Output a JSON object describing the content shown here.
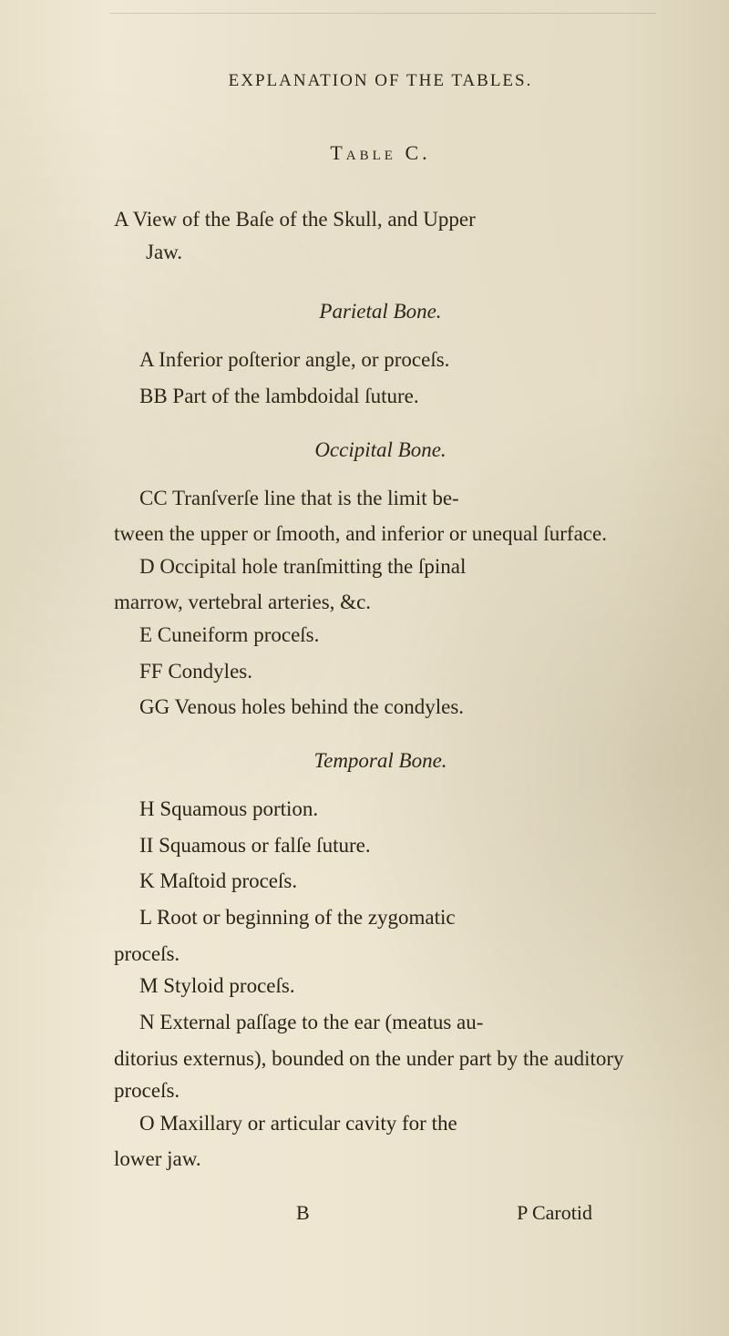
{
  "header": "EXPLANATION OF THE TABLES.",
  "tableLabel": "Table C.",
  "mainTitle": {
    "line1": "A View of the Baſe of the Skull, and Upper",
    "line2": "Jaw."
  },
  "sections": {
    "parietal": {
      "title": "Parietal Bone.",
      "entries": [
        "A  Inferior poſterior angle, or proceſs.",
        "BB  Part of the lambdoidal ſuture."
      ]
    },
    "occipital": {
      "title": "Occipital Bone.",
      "entries": [
        "CC  Tranſverſe line that is the limit be-",
        "tween the upper or ſmooth, and inferior or unequal ſurface.",
        "D  Occipital hole tranſmitting the ſpinal",
        "marrow, vertebral arteries, &c.",
        "E  Cuneiform proceſs.",
        "FF  Condyles.",
        "GG  Venous holes behind the condyles."
      ]
    },
    "temporal": {
      "title": "Temporal Bone.",
      "entries": [
        "H  Squamous portion.",
        "II  Squamous or falſe ſuture.",
        "K  Maſtoid proceſs.",
        "L  Root or beginning of the zygomatic",
        "proceſs.",
        "M  Styloid proceſs.",
        "N  External paſſage to the ear (meatus au-",
        "ditorius externus), bounded on the under part by the auditory proceſs.",
        "O  Maxillary or articular cavity for the",
        "lower jaw."
      ]
    }
  },
  "footer": {
    "left": "B",
    "right": "P Carotid"
  },
  "colors": {
    "background": "#ede5d0",
    "text": "#2a2418",
    "aged_tint": "#e8e0c8"
  },
  "typography": {
    "body_fontsize": 23,
    "header_fontsize": 19,
    "font_family": "Georgia, Times New Roman, serif"
  }
}
